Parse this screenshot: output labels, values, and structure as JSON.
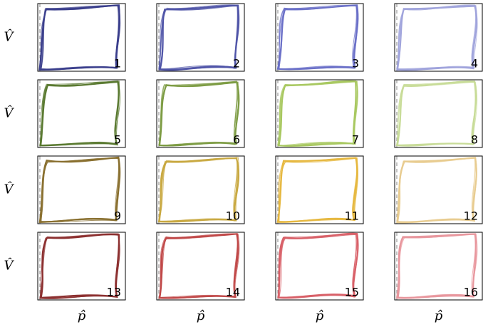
{
  "y_label": "V̂",
  "x_label": "p̂",
  "panels": [
    {
      "label": "1",
      "color": "#3b3f8c"
    },
    {
      "label": "2",
      "color": "#5055a8"
    },
    {
      "label": "3",
      "color": "#6b70c8"
    },
    {
      "label": "4",
      "color": "#a0a4dc"
    },
    {
      "label": "5",
      "color": "#5a7a30"
    },
    {
      "label": "6",
      "color": "#7d9c44"
    },
    {
      "label": "7",
      "color": "#a8c860"
    },
    {
      "label": "8",
      "color": "#c8dc98"
    },
    {
      "label": "9",
      "color": "#8a7030"
    },
    {
      "label": "10",
      "color": "#c8a840"
    },
    {
      "label": "11",
      "color": "#e6b840"
    },
    {
      "label": "12",
      "color": "#e8cc90"
    },
    {
      "label": "13",
      "color": "#8c3030"
    },
    {
      "label": "14",
      "color": "#c04848"
    },
    {
      "label": "15",
      "color": "#d86068"
    },
    {
      "label": "16",
      "color": "#e8979e"
    }
  ]
}
